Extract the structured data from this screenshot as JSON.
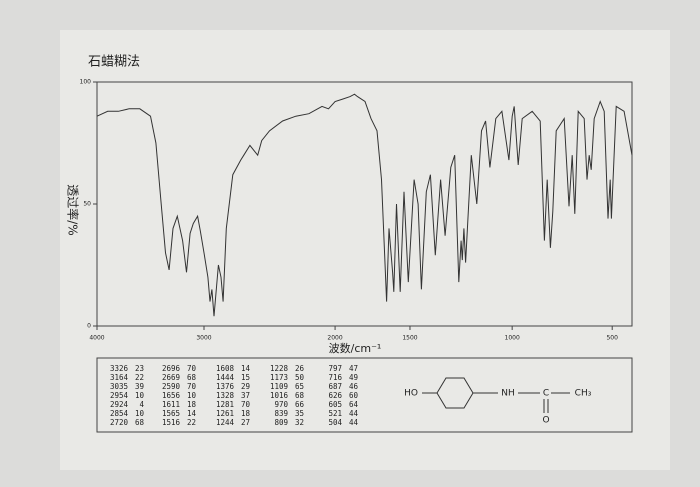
{
  "chart_data": {
    "type": "line",
    "title": "石蜡糊法",
    "y_label": "透过率/%",
    "x_label": "波数/cm⁻¹",
    "xlim": [
      4000,
      450
    ],
    "xticks": [
      4000,
      3000,
      2000,
      1500,
      1000,
      500
    ],
    "ylim": [
      0,
      100
    ],
    "yticks": [
      0,
      50,
      100
    ],
    "color": "#333333",
    "x": [
      4000,
      3900,
      3800,
      3700,
      3600,
      3500,
      3450,
      3400,
      3360,
      3326,
      3290,
      3250,
      3200,
      3164,
      3130,
      3100,
      3060,
      3035,
      3000,
      2970,
      2954,
      2940,
      2924,
      2890,
      2870,
      2854,
      2830,
      2780,
      2720,
      2696,
      2650,
      2590,
      2560,
      2500,
      2400,
      2300,
      2200,
      2100,
      2050,
      2000,
      1950,
      1900,
      1870,
      1850,
      1800,
      1760,
      1720,
      1690,
      1656,
      1640,
      1616,
      1608,
      1590,
      1565,
      1540,
      1511,
      1480,
      1460,
      1444,
      1420,
      1400,
      1376,
      1350,
      1328,
      1300,
      1281,
      1261,
      1250,
      1244,
      1236,
      1228,
      1200,
      1173,
      1150,
      1130,
      1109,
      1080,
      1050,
      1016,
      1000,
      990,
      970,
      950,
      900,
      860,
      839,
      825,
      809,
      797,
      780,
      740,
      716,
      700,
      687,
      670,
      640,
      626,
      615,
      605,
      590,
      560,
      540,
      521,
      510,
      504,
      490,
      470,
      450
    ],
    "values": [
      86,
      88,
      88,
      89,
      89,
      86,
      75,
      50,
      30,
      23,
      40,
      45,
      35,
      22,
      38,
      42,
      45,
      39,
      30,
      20,
      10,
      15,
      4,
      25,
      20,
      10,
      40,
      62,
      68,
      70,
      74,
      70,
      76,
      80,
      84,
      86,
      87,
      90,
      89,
      92,
      93,
      94,
      95,
      94,
      92,
      85,
      80,
      60,
      10,
      40,
      22,
      14,
      50,
      14,
      55,
      18,
      60,
      50,
      15,
      55,
      62,
      29,
      60,
      37,
      65,
      70,
      18,
      35,
      27,
      40,
      26,
      70,
      50,
      80,
      84,
      65,
      85,
      88,
      68,
      86,
      90,
      66,
      85,
      88,
      84,
      35,
      60,
      32,
      47,
      80,
      85,
      49,
      70,
      46,
      88,
      85,
      60,
      70,
      64,
      85,
      92,
      88,
      44,
      60,
      44,
      90,
      88,
      70
    ],
    "peak_table": [
      [
        [
          3326,
          23
        ],
        [
          3164,
          22
        ],
        [
          3035,
          39
        ],
        [
          2954,
          10
        ],
        [
          2924,
          4
        ],
        [
          2854,
          10
        ],
        [
          2720,
          68
        ]
      ],
      [
        [
          2696,
          70
        ],
        [
          2669,
          68
        ],
        [
          2590,
          70
        ],
        [
          1656,
          10
        ],
        [
          1611,
          18
        ],
        [
          1565,
          14
        ],
        [
          1516,
          22
        ]
      ],
      [
        [
          1608,
          14
        ],
        [
          1444,
          15
        ],
        [
          1376,
          29
        ],
        [
          1328,
          37
        ],
        [
          1281,
          70
        ],
        [
          1261,
          18
        ],
        [
          1244,
          27
        ]
      ],
      [
        [
          1228,
          26
        ],
        [
          1173,
          50
        ],
        [
          1109,
          65
        ],
        [
          1016,
          68
        ],
        [
          970,
          66
        ],
        [
          839,
          35
        ],
        [
          809,
          32
        ]
      ],
      [
        [
          797,
          47
        ],
        [
          716,
          49
        ],
        [
          687,
          46
        ],
        [
          626,
          60
        ],
        [
          605,
          64
        ],
        [
          521,
          44
        ],
        [
          504,
          44
        ]
      ]
    ],
    "structure_labels": [
      "HO",
      "NH",
      "C",
      "CH₃",
      "O"
    ]
  }
}
